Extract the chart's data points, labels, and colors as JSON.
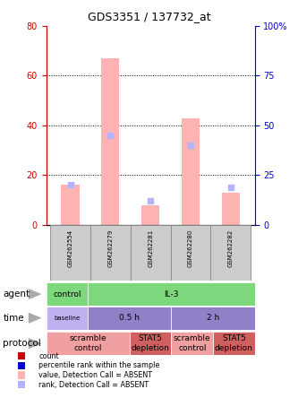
{
  "title": "GDS3351 / 137732_at",
  "samples": [
    "GSM262554",
    "GSM262279",
    "GSM262281",
    "GSM262280",
    "GSM262282"
  ],
  "bar_values": [
    16,
    67,
    8,
    43,
    13
  ],
  "rank_values": [
    20,
    45,
    12,
    40,
    19
  ],
  "bar_color": "#ffb3b3",
  "rank_color": "#b3b3ff",
  "ylim_left": [
    0,
    80
  ],
  "ylim_right": [
    0,
    100
  ],
  "yticks_left": [
    0,
    20,
    40,
    60,
    80
  ],
  "yticks_right": [
    0,
    25,
    50,
    75,
    100
  ],
  "agent_cells": [
    {
      "text": "control",
      "colspan": 1,
      "color": "#7dd87d"
    },
    {
      "text": "IL-3",
      "colspan": 4,
      "color": "#7dd87d"
    }
  ],
  "time_cells": [
    {
      "text": "baseline",
      "colspan": 1,
      "color": "#c0b0f0",
      "small": true
    },
    {
      "text": "0.5 h",
      "colspan": 2,
      "color": "#9080c8"
    },
    {
      "text": "2 h",
      "colspan": 2,
      "color": "#9080c8"
    }
  ],
  "protocol_cells": [
    {
      "text": "scramble\ncontrol",
      "colspan": 2,
      "color": "#f0a0a0"
    },
    {
      "text": "STAT5\ndepletion",
      "colspan": 1,
      "color": "#d06060"
    },
    {
      "text": "scramble\ncontrol",
      "colspan": 1,
      "color": "#f0a0a0"
    },
    {
      "text": "STAT5\ndepletion",
      "colspan": 1,
      "color": "#d06060"
    }
  ],
  "legend_items": [
    {
      "color": "#cc0000",
      "label": "count"
    },
    {
      "color": "#0000cc",
      "label": "percentile rank within the sample"
    },
    {
      "color": "#ffb3b3",
      "label": "value, Detection Call = ABSENT"
    },
    {
      "color": "#b3b3ff",
      "label": "rank, Detection Call = ABSENT"
    }
  ],
  "sample_box_color": "#cccccc",
  "left_axis_color": "#cc0000",
  "right_axis_color": "#0000cc",
  "n_samples": 5
}
